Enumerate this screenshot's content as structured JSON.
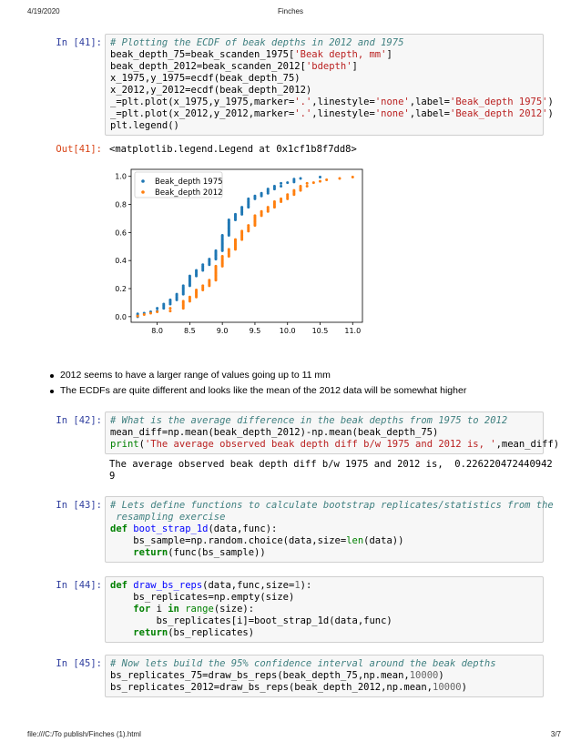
{
  "page": {
    "date": "4/19/2020",
    "title": "Finches",
    "footer_path": "file:///C:/To publish/Finches (1).html",
    "page_number": "3/7"
  },
  "cells": [
    {
      "prompt": "In [41]:",
      "lines": [
        [
          [
            "com",
            "# Plotting the ECDF of beak depths in 2012 and 1975"
          ]
        ],
        [
          [
            "",
            "beak_depth_75=beak_scanden_1975["
          ],
          [
            "str",
            "'Beak depth, mm'"
          ],
          [
            "",
            "]"
          ]
        ],
        [
          [
            "",
            "beak_depth_2012=beak_scanden_2012["
          ],
          [
            "str",
            "'bdepth'"
          ],
          [
            "",
            "]"
          ]
        ],
        [
          [
            "",
            "x_1975,y_1975=ecdf(beak_depth_75)"
          ]
        ],
        [
          [
            "",
            "x_2012,y_2012=ecdf(beak_depth_2012)"
          ]
        ],
        [
          [
            "",
            "_=plt.plot(x_1975,y_1975,marker="
          ],
          [
            "str",
            "'.'"
          ],
          [
            "",
            ",linestyle="
          ],
          [
            "str",
            "'none'"
          ],
          [
            "",
            ",label="
          ],
          [
            "str",
            "'Beak_depth 1975'"
          ],
          [
            "",
            ")"
          ]
        ],
        [
          [
            "",
            "_=plt.plot(x_2012,y_2012,marker="
          ],
          [
            "str",
            "'.'"
          ],
          [
            "",
            ",linestyle="
          ],
          [
            "str",
            "'none'"
          ],
          [
            "",
            ",label="
          ],
          [
            "str",
            "'Beak_depth 2012'"
          ],
          [
            "",
            ")"
          ]
        ],
        [
          [
            "",
            "plt.legend()"
          ]
        ]
      ]
    },
    {
      "prompt": "In [42]:",
      "lines": [
        [
          [
            "com",
            "# What is the average difference in the beak depths from 1975 to 2012"
          ]
        ],
        [
          [
            "",
            "mean_diff=np.mean(beak_depth_2012)-np.mean(beak_depth_75)"
          ]
        ],
        [
          [
            "bi",
            "print"
          ],
          [
            "",
            "("
          ],
          [
            "str",
            "'The average observed beak depth diff b/w 1975 and 2012 is, '"
          ],
          [
            "",
            ",mean_diff)"
          ]
        ]
      ]
    },
    {
      "prompt": "In [43]:",
      "lines": [
        [
          [
            "com",
            "# Lets define functions to calculate bootstrap replicates/statistics from the"
          ]
        ],
        [
          [
            "com",
            " resampling exercise"
          ]
        ],
        [
          [
            "kw",
            "def "
          ],
          [
            "fn",
            "boot_strap_1d"
          ],
          [
            "",
            "(data,func):"
          ]
        ],
        [
          [
            "",
            "    bs_sample=np.random.choice(data,size="
          ],
          [
            "bi",
            "len"
          ],
          [
            "",
            "(data))"
          ]
        ],
        [
          [
            "",
            "    "
          ],
          [
            "kw",
            "return"
          ],
          [
            "",
            "(func(bs_sample))"
          ]
        ]
      ]
    },
    {
      "prompt": "In [44]:",
      "lines": [
        [
          [
            "kw",
            "def "
          ],
          [
            "fn",
            "draw_bs_reps"
          ],
          [
            "",
            "(data,func,size="
          ],
          [
            "num",
            "1"
          ],
          [
            "",
            "):"
          ]
        ],
        [
          [
            "",
            "    bs_replicates=np.empty(size)"
          ]
        ],
        [
          [
            "",
            "    "
          ],
          [
            "kw",
            "for"
          ],
          [
            "",
            " i "
          ],
          [
            "kw",
            "in"
          ],
          [
            "",
            " "
          ],
          [
            "bi",
            "range"
          ],
          [
            "",
            "(size):"
          ]
        ],
        [
          [
            "",
            "        bs_replicates[i]=boot_strap_1d(data,func)"
          ]
        ],
        [
          [
            "",
            "    "
          ],
          [
            "kw",
            "return"
          ],
          [
            "",
            "(bs_replicates)"
          ]
        ]
      ]
    },
    {
      "prompt": "In [45]:",
      "lines": [
        [
          [
            "com",
            "# Now lets build the 95% confidence interval around the beak depths"
          ]
        ],
        [
          [
            "",
            "bs_replicates_75=draw_bs_reps(beak_depth_75,np.mean,"
          ],
          [
            "num",
            "10000"
          ],
          [
            "",
            ")"
          ]
        ],
        [
          [
            "",
            "bs_replicates_2012=draw_bs_reps(beak_depth_2012,np.mean,"
          ],
          [
            "num",
            "10000"
          ],
          [
            "",
            ")"
          ]
        ]
      ]
    }
  ],
  "out41": {
    "prompt": "Out[41]:",
    "text": "<matplotlib.legend.Legend at 0x1cf1b8f7dd8>"
  },
  "out42": {
    "text": "The average observed beak depth diff b/w 1975 and 2012 is,  0.226220472440942\n9"
  },
  "bullets": [
    "2012 seems to have a larger range of values going up to 11 mm",
    "The ECDFs are quite different and looks like the mean of the 2012 data will be somewhat higher"
  ],
  "chart_data": {
    "type": "scatter",
    "xlim": [
      7.6,
      11.15
    ],
    "ylim": [
      -0.04,
      1.05
    ],
    "xticks": [
      "8.0",
      "8.5",
      "9.0",
      "9.5",
      "10.0",
      "10.5",
      "11.0"
    ],
    "yticks": [
      "0.0",
      "0.2",
      "0.4",
      "0.6",
      "0.8",
      "1.0"
    ],
    "legend_position": "top-left",
    "series": [
      {
        "name": "Beak_depth 1975",
        "color": "#1f77b4",
        "groups": [
          [
            7.7,
            0.0,
            0.02
          ],
          [
            7.8,
            0.02,
            0.03
          ],
          [
            7.9,
            0.03,
            0.04
          ],
          [
            8.0,
            0.04,
            0.06
          ],
          [
            8.1,
            0.06,
            0.09
          ],
          [
            8.2,
            0.09,
            0.12
          ],
          [
            8.3,
            0.12,
            0.16
          ],
          [
            8.4,
            0.16,
            0.22
          ],
          [
            8.5,
            0.22,
            0.29
          ],
          [
            8.6,
            0.29,
            0.33
          ],
          [
            8.7,
            0.33,
            0.37
          ],
          [
            8.8,
            0.37,
            0.41
          ],
          [
            8.9,
            0.41,
            0.47
          ],
          [
            9.0,
            0.47,
            0.58
          ],
          [
            9.1,
            0.58,
            0.69
          ],
          [
            9.2,
            0.69,
            0.73
          ],
          [
            9.3,
            0.73,
            0.78
          ],
          [
            9.4,
            0.78,
            0.84
          ],
          [
            9.5,
            0.84,
            0.86
          ],
          [
            9.6,
            0.86,
            0.88
          ],
          [
            9.7,
            0.88,
            0.91
          ],
          [
            9.8,
            0.91,
            0.93
          ],
          [
            9.9,
            0.93,
            0.95
          ],
          [
            10.0,
            0.95,
            0.96
          ],
          [
            10.1,
            0.96,
            0.98
          ],
          [
            10.2,
            0.98,
            0.99
          ],
          [
            10.5,
            0.99,
            1.0
          ]
        ]
      },
      {
        "name": "Beak_depth 2012",
        "color": "#ff7f0e",
        "groups": [
          [
            7.7,
            0.0,
            0.01
          ],
          [
            7.8,
            0.01,
            0.02
          ],
          [
            7.9,
            0.02,
            0.03
          ],
          [
            8.0,
            0.03,
            0.04
          ],
          [
            8.2,
            0.04,
            0.06
          ],
          [
            8.4,
            0.06,
            0.11
          ],
          [
            8.5,
            0.11,
            0.14
          ],
          [
            8.6,
            0.14,
            0.19
          ],
          [
            8.7,
            0.19,
            0.22
          ],
          [
            8.8,
            0.22,
            0.26
          ],
          [
            8.9,
            0.26,
            0.36
          ],
          [
            9.0,
            0.36,
            0.43
          ],
          [
            9.1,
            0.43,
            0.48
          ],
          [
            9.2,
            0.48,
            0.55
          ],
          [
            9.3,
            0.55,
            0.61
          ],
          [
            9.4,
            0.61,
            0.65
          ],
          [
            9.5,
            0.65,
            0.72
          ],
          [
            9.6,
            0.72,
            0.75
          ],
          [
            9.7,
            0.75,
            0.78
          ],
          [
            9.8,
            0.78,
            0.82
          ],
          [
            9.9,
            0.82,
            0.84
          ],
          [
            10.0,
            0.84,
            0.87
          ],
          [
            10.1,
            0.87,
            0.9
          ],
          [
            10.2,
            0.9,
            0.93
          ],
          [
            10.3,
            0.93,
            0.95
          ],
          [
            10.4,
            0.95,
            0.96
          ],
          [
            10.5,
            0.96,
            0.97
          ],
          [
            10.6,
            0.97,
            0.98
          ],
          [
            10.8,
            0.98,
            0.99
          ],
          [
            11.0,
            0.99,
            1.0
          ]
        ]
      }
    ]
  }
}
